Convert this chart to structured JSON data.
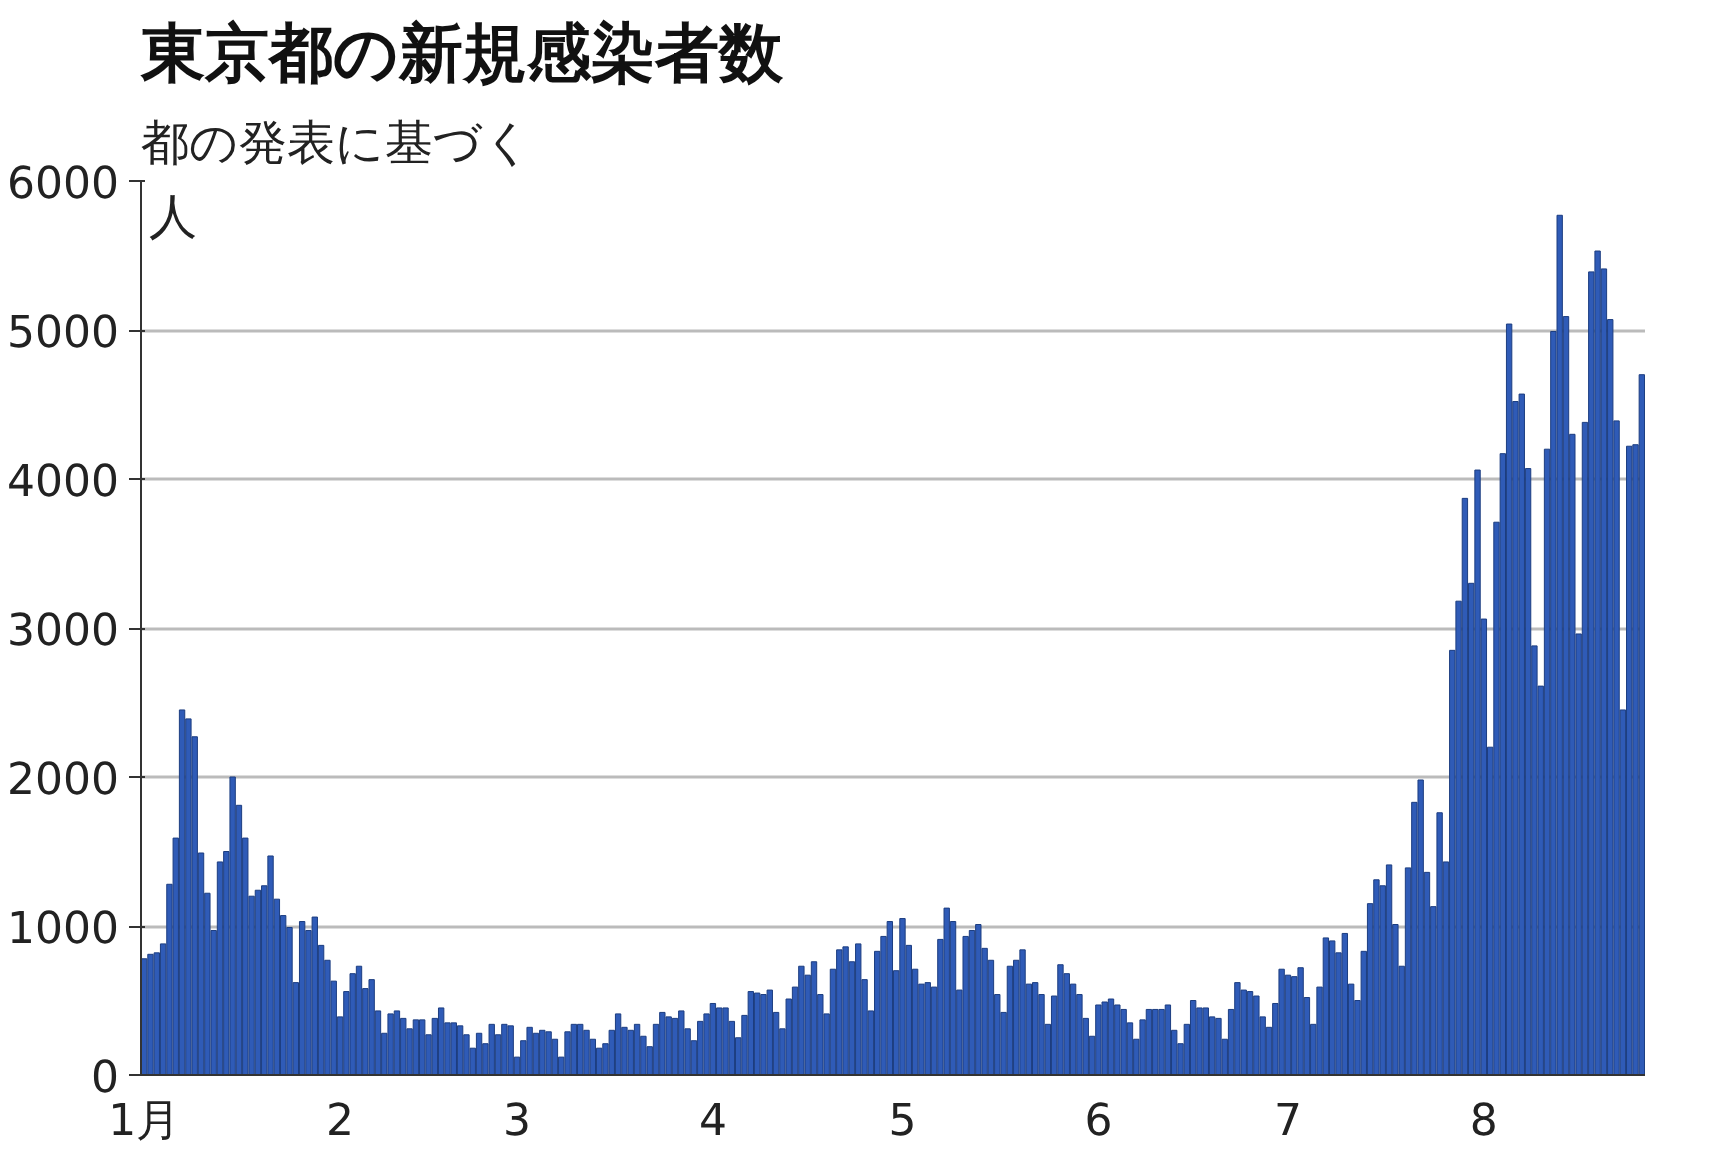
{
  "chart_data": {
    "type": "bar",
    "title": "東京都の新規感染者数",
    "subtitle": "都の発表に基づく",
    "ylabel": "人",
    "categories": [
      "1月",
      null,
      null,
      null,
      null,
      null,
      null,
      null,
      null,
      null,
      null,
      null,
      null,
      null,
      null,
      null,
      null,
      null,
      null,
      null,
      null,
      null,
      null,
      null,
      null,
      null,
      null,
      null,
      null,
      null,
      null,
      "2",
      null,
      null,
      null,
      null,
      null,
      null,
      null,
      null,
      null,
      null,
      null,
      null,
      null,
      null,
      null,
      null,
      null,
      null,
      null,
      null,
      null,
      null,
      null,
      null,
      null,
      null,
      null,
      "3",
      null,
      null,
      null,
      null,
      null,
      null,
      null,
      null,
      null,
      null,
      null,
      null,
      null,
      null,
      null,
      null,
      null,
      null,
      null,
      null,
      null,
      null,
      null,
      null,
      null,
      null,
      null,
      null,
      null,
      null,
      "4",
      null,
      null,
      null,
      null,
      null,
      null,
      null,
      null,
      null,
      null,
      null,
      null,
      null,
      null,
      null,
      null,
      null,
      null,
      null,
      null,
      null,
      null,
      null,
      null,
      null,
      null,
      null,
      null,
      null,
      "5",
      null,
      null,
      null,
      null,
      null,
      null,
      null,
      null,
      null,
      null,
      null,
      null,
      null,
      null,
      null,
      null,
      null,
      null,
      null,
      null,
      null,
      null,
      null,
      null,
      null,
      null,
      null,
      null,
      null,
      null,
      "6",
      null,
      null,
      null,
      null,
      null,
      null,
      null,
      null,
      null,
      null,
      null,
      null,
      null,
      null,
      null,
      null,
      null,
      null,
      null,
      null,
      null,
      null,
      null,
      null,
      null,
      null,
      null,
      null,
      null,
      "7",
      null,
      null,
      null,
      null,
      null,
      null,
      null,
      null,
      null,
      null,
      null,
      null,
      null,
      null,
      null,
      null,
      null,
      null,
      null,
      null,
      null,
      null,
      null,
      null,
      null,
      null,
      null,
      null,
      null,
      null,
      "8",
      null,
      null,
      null,
      null,
      null,
      null,
      null,
      null,
      null,
      null,
      null,
      null,
      null,
      null,
      null,
      null,
      null,
      null,
      null,
      null,
      null,
      null,
      null,
      null,
      null
    ],
    "values": [
      780,
      810,
      820,
      880,
      1280,
      1590,
      2450,
      2390,
      2270,
      1490,
      1220,
      970,
      1430,
      1500,
      2000,
      1810,
      1590,
      1200,
      1240,
      1270,
      1470,
      1180,
      1070,
      990,
      620,
      1030,
      970,
      1060,
      870,
      770,
      630,
      390,
      560,
      680,
      730,
      580,
      640,
      430,
      280,
      410,
      430,
      380,
      310,
      370,
      370,
      270,
      380,
      450,
      350,
      350,
      330,
      270,
      180,
      280,
      210,
      340,
      270,
      340,
      330,
      120,
      230,
      320,
      280,
      300,
      290,
      240,
      120,
      290,
      340,
      340,
      300,
      240,
      180,
      210,
      300,
      410,
      320,
      300,
      340,
      260,
      190,
      340,
      420,
      390,
      380,
      430,
      310,
      230,
      360,
      410,
      480,
      450,
      450,
      360,
      250,
      400,
      560,
      550,
      540,
      570,
      420,
      310,
      510,
      590,
      730,
      670,
      760,
      540,
      410,
      710,
      840,
      860,
      760,
      880,
      640,
      430,
      830,
      930,
      1030,
      700,
      1050,
      870,
      710,
      610,
      620,
      590,
      910,
      1120,
      1030,
      570,
      930,
      970,
      1010,
      850,
      770,
      540,
      420,
      730,
      770,
      840,
      610,
      620,
      540,
      340,
      530,
      740,
      680,
      610,
      540,
      380,
      260,
      470,
      490,
      510,
      470,
      440,
      350,
      240,
      370,
      440,
      440,
      440,
      470,
      300,
      210,
      340,
      500,
      450,
      450,
      390,
      380,
      240,
      440,
      620,
      570,
      560,
      530,
      390,
      320,
      480,
      710,
      670,
      660,
      720,
      520,
      340,
      590,
      920,
      900,
      820,
      950,
      610,
      500,
      830,
      1150,
      1310,
      1270,
      1410,
      1010,
      730,
      1390,
      1830,
      1980,
      1360,
      1130,
      1760,
      1430,
      2850,
      3180,
      3870,
      3300,
      4060,
      3060,
      2200,
      3710,
      4170,
      5040,
      4520,
      4570,
      4070,
      2880,
      2610,
      4200,
      4990,
      5770,
      5090,
      4300,
      2960,
      4380,
      5390,
      5530,
      5410,
      5070,
      4390,
      2450,
      4220,
      4230,
      4700
    ],
    "color": "#2f5bb7",
    "ylim": [
      0,
      6000
    ],
    "yticks": [
      0,
      1000,
      2000,
      3000,
      4000,
      5000,
      6000
    ],
    "grid": "y"
  }
}
